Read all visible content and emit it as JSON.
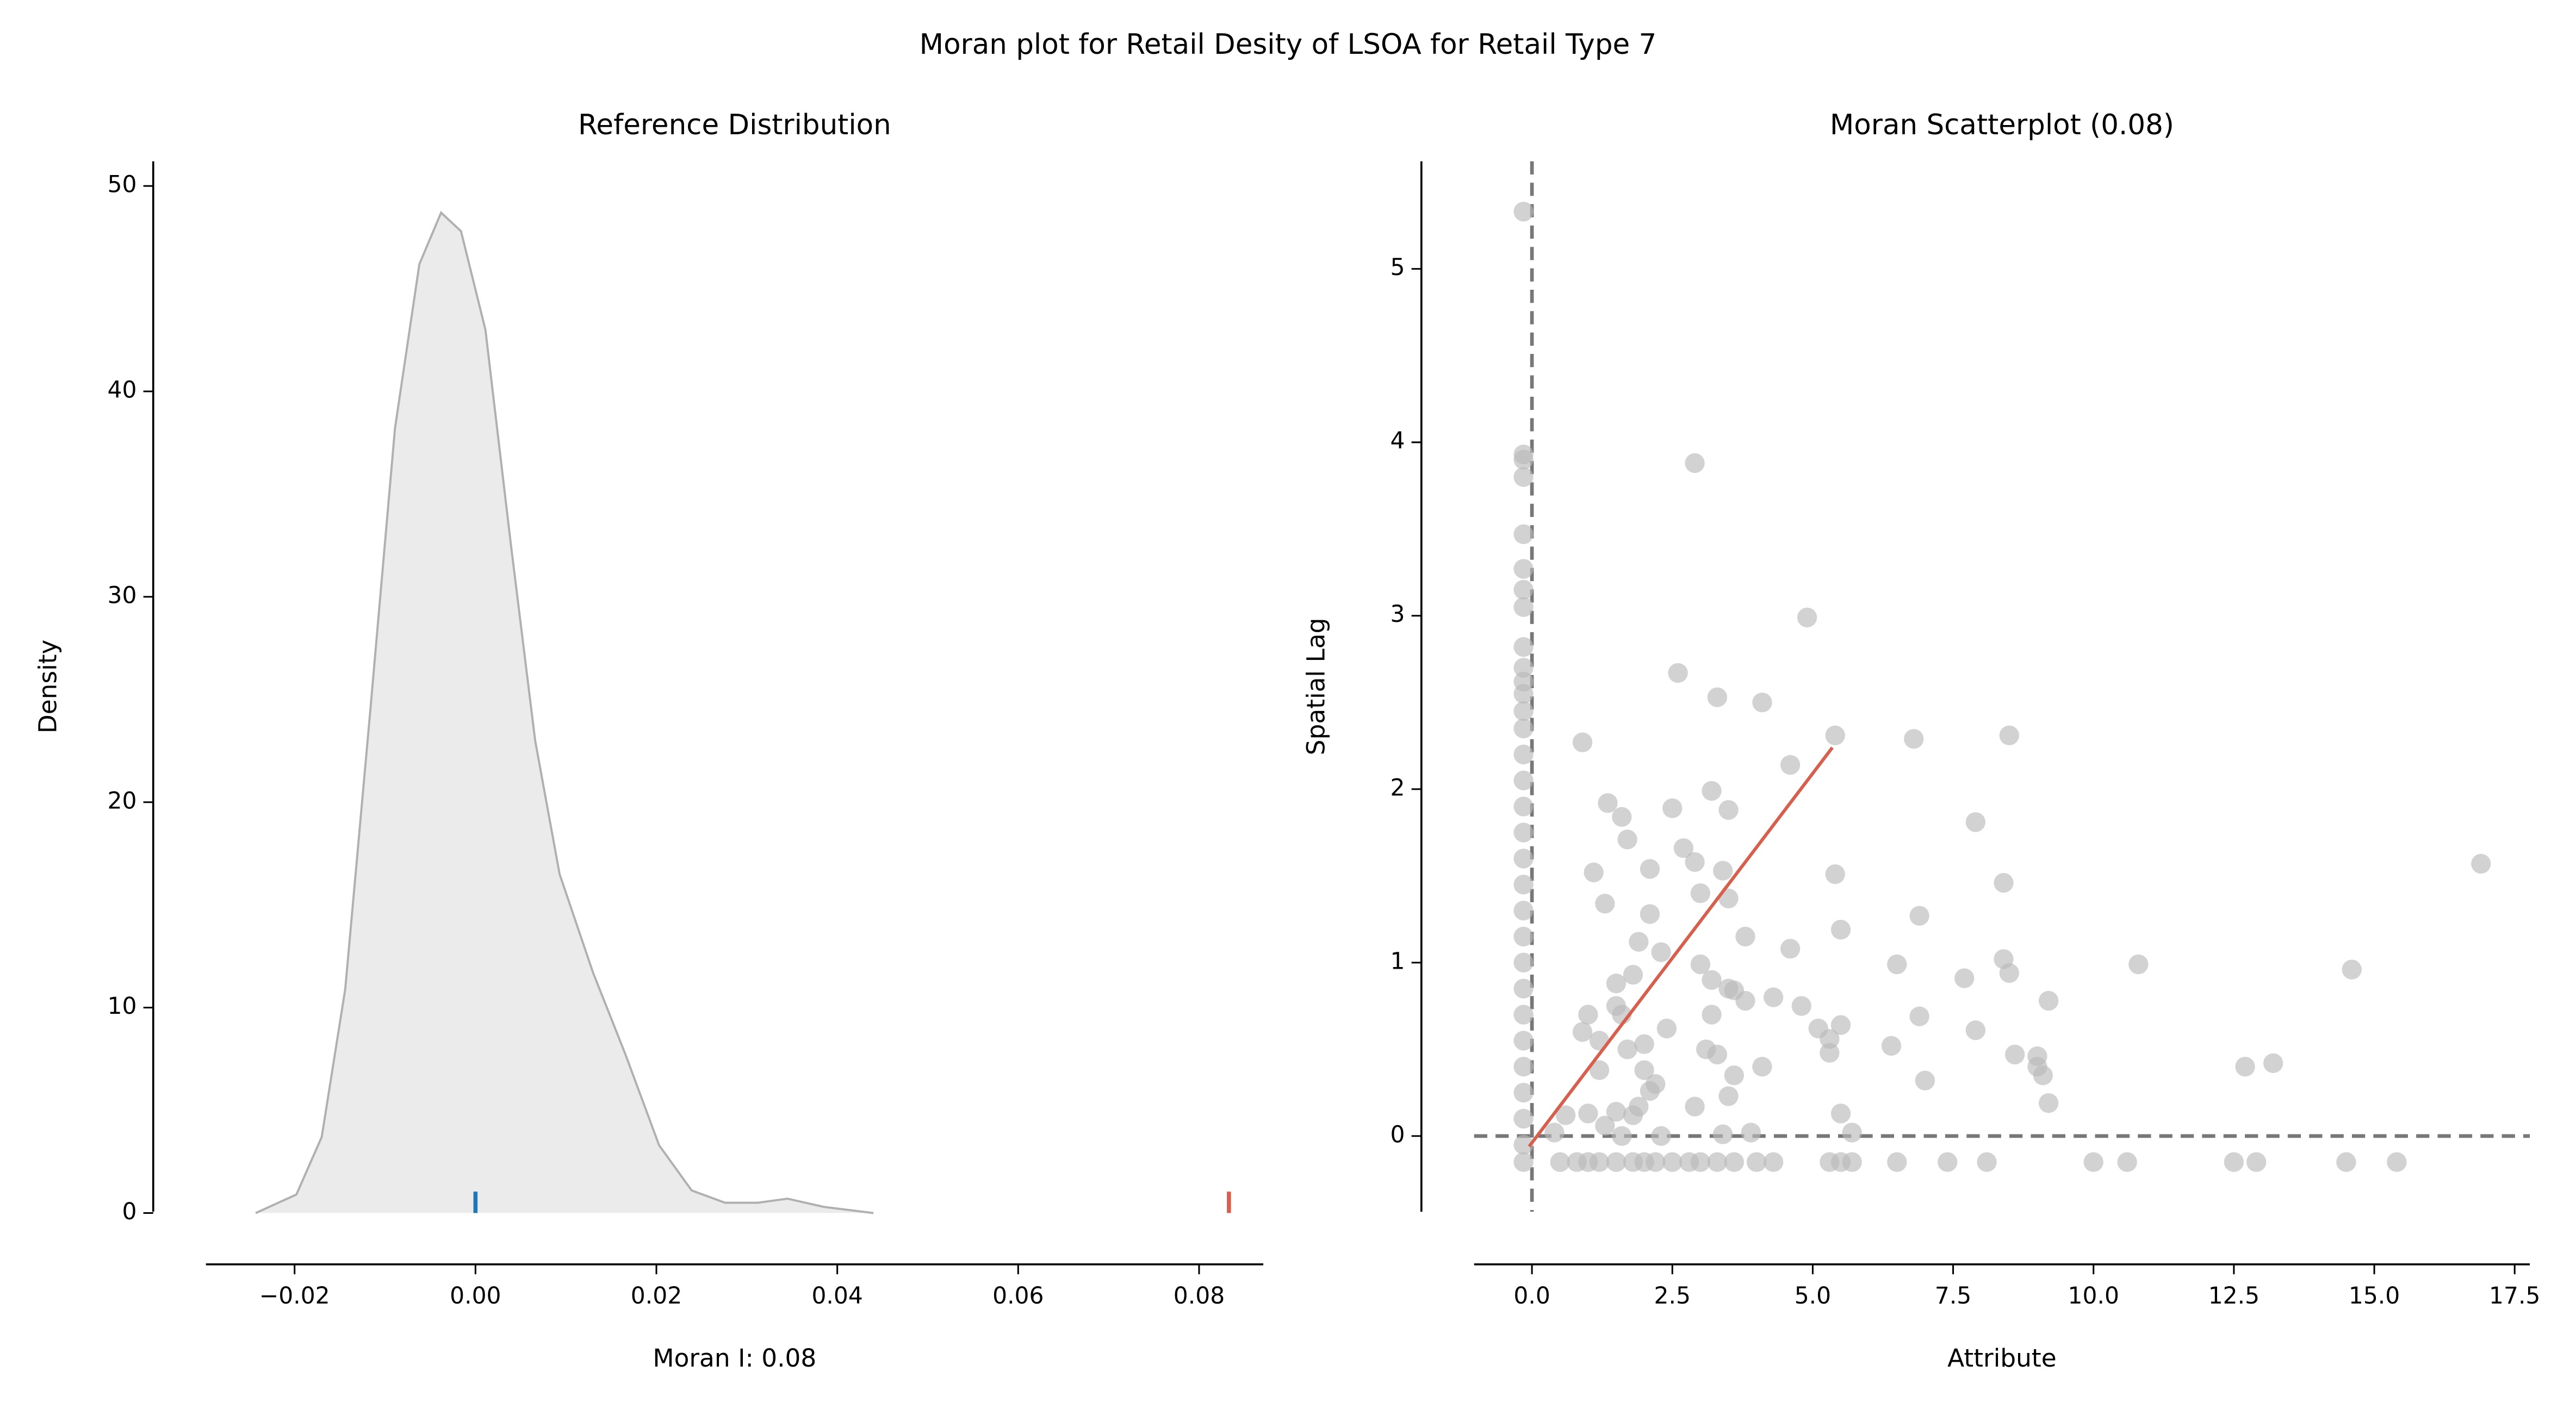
{
  "title": "Moran plot for Retail Desity of LSOA for Retail Type 7",
  "chart_data": [
    {
      "type": "area",
      "title": "Reference Distribution",
      "xlabel": "Moran I: 0.08",
      "ylabel": "Density",
      "x": [
        -0.0243,
        -0.0198,
        -0.017,
        -0.0144,
        -0.0116,
        -0.0089,
        -0.0062,
        -0.0038,
        -0.0016,
        0.0011,
        0.0039,
        0.0066,
        0.0093,
        0.013,
        0.0166,
        0.0203,
        0.0239,
        0.0276,
        0.0312,
        0.0345,
        0.0385,
        0.044
      ],
      "values": [
        0,
        0.9,
        3.7,
        10.9,
        24.6,
        38.2,
        46.2,
        48.7,
        47.8,
        43,
        32.6,
        23,
        16.5,
        11.7,
        7.7,
        3.3,
        1.1,
        0.5,
        0.5,
        0.7,
        0.3,
        0
      ],
      "color": "#b0b0b0",
      "fill_color": "#ebebeb",
      "rug": [
        {
          "x": 0,
          "color": "#1f77b4"
        },
        {
          "x": 0.0833,
          "color": "#d6604d"
        }
      ],
      "xlim": [
        -0.0298,
        0.0871
      ],
      "ylim": [
        -2.5,
        51.2
      ],
      "xticks": [
        {
          "value": -0.02,
          "label": "−0.02"
        },
        {
          "value": 0,
          "label": "0.00"
        },
        {
          "value": 0.02,
          "label": "0.02"
        },
        {
          "value": 0.04,
          "label": "0.04"
        },
        {
          "value": 0.06,
          "label": "0.06"
        },
        {
          "value": 0.08,
          "label": "0.08"
        }
      ],
      "yticks": [
        0,
        10,
        20,
        30,
        40,
        50
      ]
    },
    {
      "type": "scatter",
      "title": "Moran Scatterplot (0.08)",
      "xlabel": "Attribute",
      "ylabel": "Spatial Lag",
      "x": [
        -0.15,
        -0.15,
        -0.15,
        -0.15,
        -0.15,
        -0.15,
        -0.15,
        -0.15,
        -0.15,
        -0.15,
        -0.15,
        -0.15,
        -0.15,
        -0.15,
        -0.15,
        -0.15,
        -0.15,
        -0.15,
        -0.15,
        -0.15,
        -0.15,
        -0.15,
        -0.15,
        -0.15,
        -0.15,
        -0.15,
        -0.15,
        -0.15,
        -0.15,
        -0.15,
        -0.15,
        0.5,
        0.8,
        1.0,
        1.2,
        1.5,
        1.8,
        2.0,
        2.2,
        2.5,
        2.8,
        3.0,
        3.3,
        3.6,
        4.0,
        4.3,
        5.3,
        5.5,
        5.7,
        6.5,
        7.4,
        8.1,
        10.0,
        10.6,
        12.5,
        12.9,
        14.5,
        15.4,
        2.9,
        4.9,
        2.6,
        3.3,
        4.1,
        5.4,
        6.8,
        8.5,
        0.9,
        4.6,
        3.2,
        2.5,
        3.5,
        1.35,
        1.6,
        7.9,
        1.7,
        2.7,
        2.9,
        3.4,
        5.4,
        1.1,
        2.1,
        8.4,
        3.0,
        3.5,
        1.3,
        2.1,
        6.9,
        5.5,
        1.9,
        3.8,
        2.3,
        4.6,
        16.9,
        10.8,
        6.5,
        3.0,
        8.4,
        1.8,
        14.6,
        1.5,
        3.2,
        7.7,
        3.5,
        3.6,
        8.5,
        4.3,
        3.8,
        9.2,
        1.5,
        4.8,
        1.0,
        1.6,
        3.2,
        6.9,
        5.1,
        2.4,
        7.9,
        5.3,
        0.9,
        1.2,
        5.5,
        3.1,
        1.7,
        6.4,
        3.3,
        2.0,
        5.3,
        8.6,
        9.0,
        9.0,
        9.1,
        12.7,
        13.2,
        1.2,
        2.0,
        4.1,
        3.6,
        7.0,
        2.2,
        2.1,
        3.5,
        9.2,
        1.9,
        2.9,
        0.6,
        1.0,
        1.5,
        1.8,
        5.5,
        1.3,
        3.4,
        3.9,
        5.7,
        0.4,
        1.6,
        2.3
      ],
      "values": [
        5.33,
        3.93,
        3.9,
        3.8,
        3.47,
        3.27,
        3.15,
        3.05,
        2.82,
        2.7,
        2.62,
        2.55,
        2.45,
        2.35,
        2.2,
        2.05,
        1.9,
        1.75,
        1.6,
        1.45,
        1.3,
        1.15,
        1.0,
        0.85,
        0.7,
        0.55,
        0.4,
        0.25,
        0.1,
        -0.05,
        -0.15,
        -0.15,
        -0.15,
        -0.15,
        -0.15,
        -0.15,
        -0.15,
        -0.15,
        -0.15,
        -0.15,
        -0.15,
        -0.15,
        -0.15,
        -0.15,
        -0.15,
        -0.15,
        -0.15,
        -0.15,
        -0.15,
        -0.15,
        -0.15,
        -0.15,
        -0.15,
        -0.15,
        -0.15,
        -0.15,
        -0.15,
        -0.15,
        3.88,
        2.99,
        2.67,
        2.53,
        2.5,
        2.31,
        2.29,
        2.31,
        2.27,
        2.14,
        1.99,
        1.89,
        1.88,
        1.92,
        1.84,
        1.81,
        1.71,
        1.66,
        1.58,
        1.53,
        1.51,
        1.52,
        1.54,
        1.46,
        1.4,
        1.37,
        1.34,
        1.28,
        1.27,
        1.19,
        1.12,
        1.15,
        1.06,
        1.08,
        1.57,
        0.99,
        0.99,
        0.99,
        1.02,
        0.93,
        0.96,
        0.88,
        0.9,
        0.91,
        0.85,
        0.84,
        0.94,
        0.8,
        0.78,
        0.78,
        0.75,
        0.75,
        0.7,
        0.7,
        0.7,
        0.69,
        0.62,
        0.62,
        0.61,
        0.56,
        0.6,
        0.55,
        0.64,
        0.5,
        0.5,
        0.52,
        0.47,
        0.53,
        0.48,
        0.47,
        0.46,
        0.4,
        0.35,
        0.4,
        0.42,
        0.38,
        0.38,
        0.4,
        0.35,
        0.32,
        0.3,
        0.26,
        0.23,
        0.19,
        0.17,
        0.17,
        0.12,
        0.13,
        0.14,
        0.12,
        0.13,
        0.06,
        0.01,
        0.02,
        0.02,
        0.02,
        0.0,
        0.0
      ],
      "color": "#bababa",
      "fit": {
        "x": [
          -0.05,
          5.35
        ],
        "y": [
          -0.06,
          2.24
        ],
        "color": "#d6604d"
      },
      "ref_x": 0,
      "ref_y": 0,
      "ref_color": "#777777",
      "xlim": [
        -1.03,
        17.77
      ],
      "ylim": [
        -0.74,
        5.62
      ],
      "xticks": [
        {
          "value": 0,
          "label": "0.0"
        },
        2.5,
        {
          "value": 5,
          "label": "5.0"
        },
        7.5,
        {
          "value": 10,
          "label": "10.0"
        },
        12.5,
        {
          "value": 15,
          "label": "15.0"
        },
        17.5
      ],
      "yticks": [
        0,
        1,
        2,
        3,
        4,
        5
      ]
    }
  ]
}
